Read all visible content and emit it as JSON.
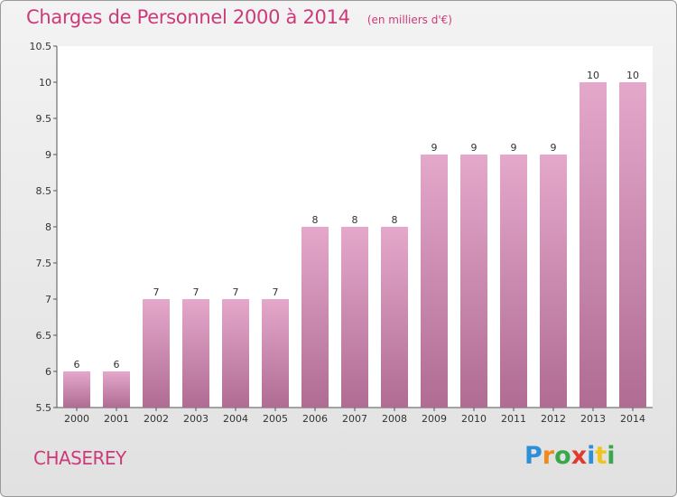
{
  "chart_data": {
    "type": "bar",
    "title": "Charges de Personnel 2000 à 2014",
    "unit_note": "(en milliers d'€)",
    "categories": [
      "2000",
      "2001",
      "2002",
      "2003",
      "2004",
      "2005",
      "2006",
      "2007",
      "2008",
      "2009",
      "2010",
      "2011",
      "2012",
      "2013",
      "2014"
    ],
    "values": [
      6,
      6,
      7,
      7,
      7,
      7,
      8,
      8,
      8,
      9,
      9,
      9,
      9,
      10,
      10
    ],
    "ylim": [
      5.5,
      10.5
    ],
    "yticks": [
      "5.5",
      "6",
      "6.5",
      "7",
      "7.5",
      "8",
      "8.5",
      "9",
      "9.5",
      "10",
      "10.5"
    ],
    "grid": false,
    "bar_color_top": "#e4a8cb",
    "bar_color_bottom": "#b06c93"
  },
  "footer": {
    "town": "CHASEREY",
    "logo_letters": [
      "P",
      "r",
      "o",
      "x",
      "i",
      "t",
      "i"
    ],
    "logo_colors": [
      "#2e8fd6",
      "#f08a1c",
      "#3aa84a",
      "#e03a2c",
      "#2e8fd6",
      "#f0c419",
      "#3aa84a"
    ]
  }
}
